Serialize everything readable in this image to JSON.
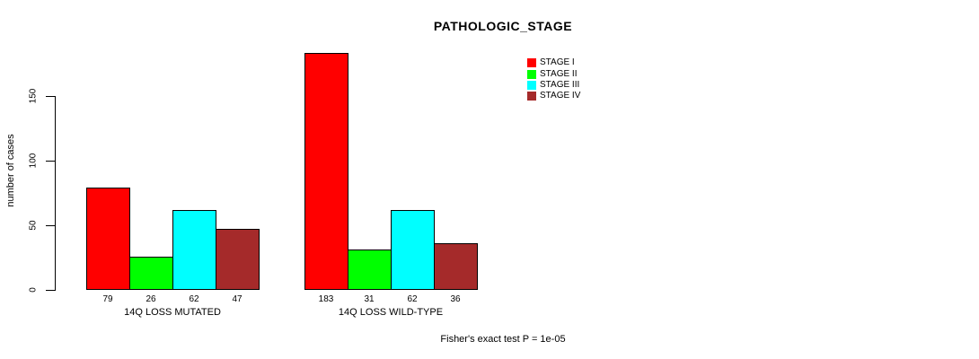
{
  "chart_data": {
    "type": "bar",
    "title": "PATHOLOGIC_STAGE",
    "ylabel": "number of cases",
    "xlabel": "",
    "ylim": [
      0,
      150
    ],
    "yticks": [
      0,
      50,
      100,
      150
    ],
    "grid": false,
    "legend_position": "top-right",
    "bar_value_labels": true,
    "groups": [
      "14Q LOSS MUTATED",
      "14Q LOSS WILD-TYPE"
    ],
    "series": [
      {
        "name": "STAGE I",
        "color": "#FF0000",
        "values": [
          79,
          183
        ]
      },
      {
        "name": "STAGE II",
        "color": "#00FF00",
        "values": [
          26,
          31
        ]
      },
      {
        "name": "STAGE III",
        "color": "#00FFFF",
        "values": [
          62,
          62
        ]
      },
      {
        "name": "STAGE IV",
        "color": "#A52A2A",
        "values": [
          47,
          36
        ]
      }
    ],
    "annotation": "Fisher's exact test P = 1e-05"
  },
  "colors": {
    "axis": "#000000",
    "background": "#ffffff",
    "text": "#000000"
  }
}
